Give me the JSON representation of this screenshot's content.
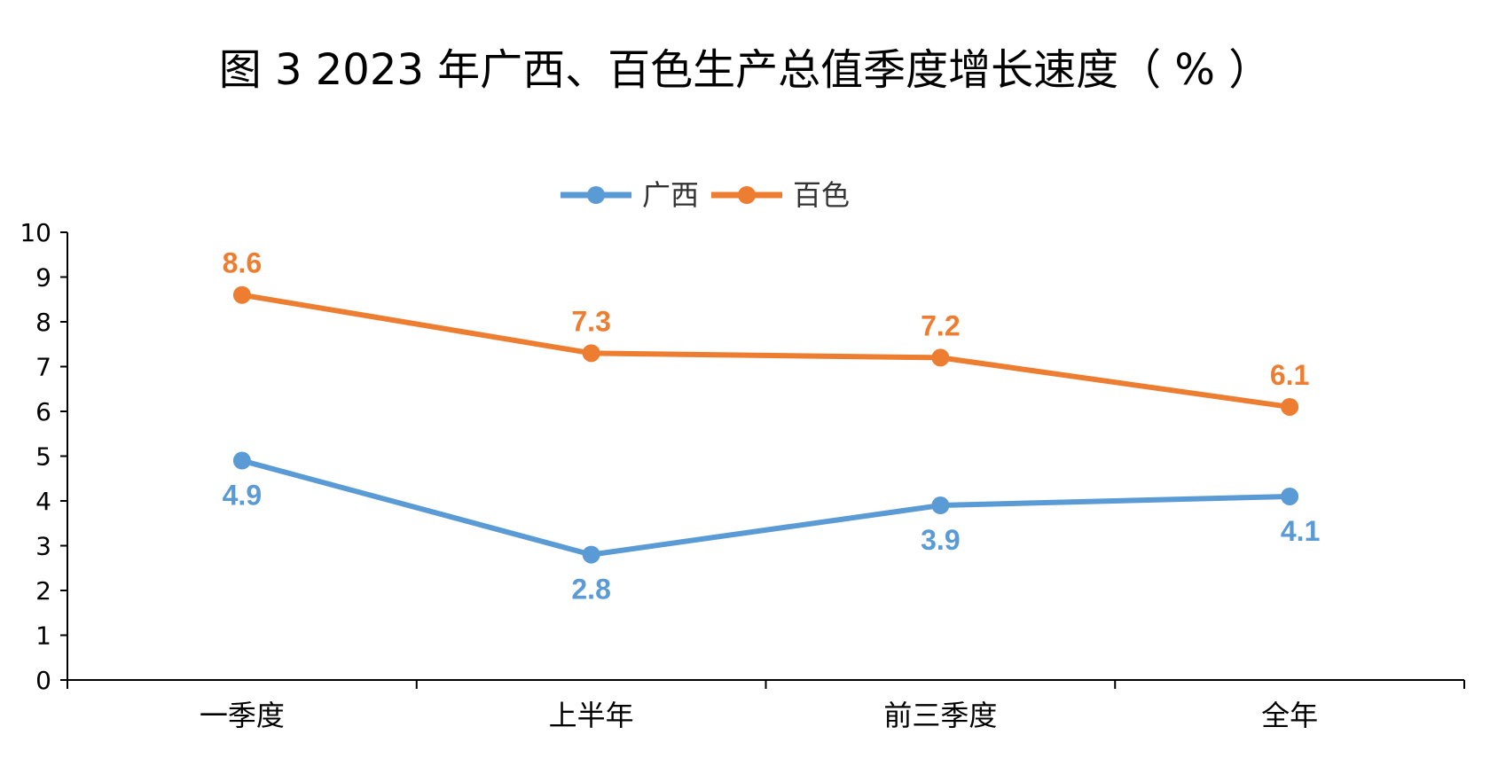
{
  "chart_data": {
    "type": "line",
    "title": "图 3 2023 年广西、百色生产总值季度增长速度（ % ）",
    "categories": [
      "一季度",
      "上半年",
      "前三季度",
      "全年"
    ],
    "series": [
      {
        "name": "广西",
        "values": [
          4.9,
          2.8,
          3.9,
          4.1
        ],
        "color": "#5B9BD5",
        "label_position": [
          "below",
          "below",
          "below",
          "below"
        ]
      },
      {
        "name": "百色",
        "values": [
          8.6,
          7.3,
          7.2,
          6.1
        ],
        "color": "#ED7D31",
        "label_position": [
          "above",
          "above",
          "above",
          "above"
        ]
      }
    ],
    "ylim": [
      0,
      10
    ],
    "yticks": [
      0,
      1,
      2,
      3,
      4,
      5,
      6,
      7,
      8,
      9,
      10
    ],
    "xlabel": "",
    "ylabel": "",
    "grid": false,
    "legend_position": "top-center"
  }
}
